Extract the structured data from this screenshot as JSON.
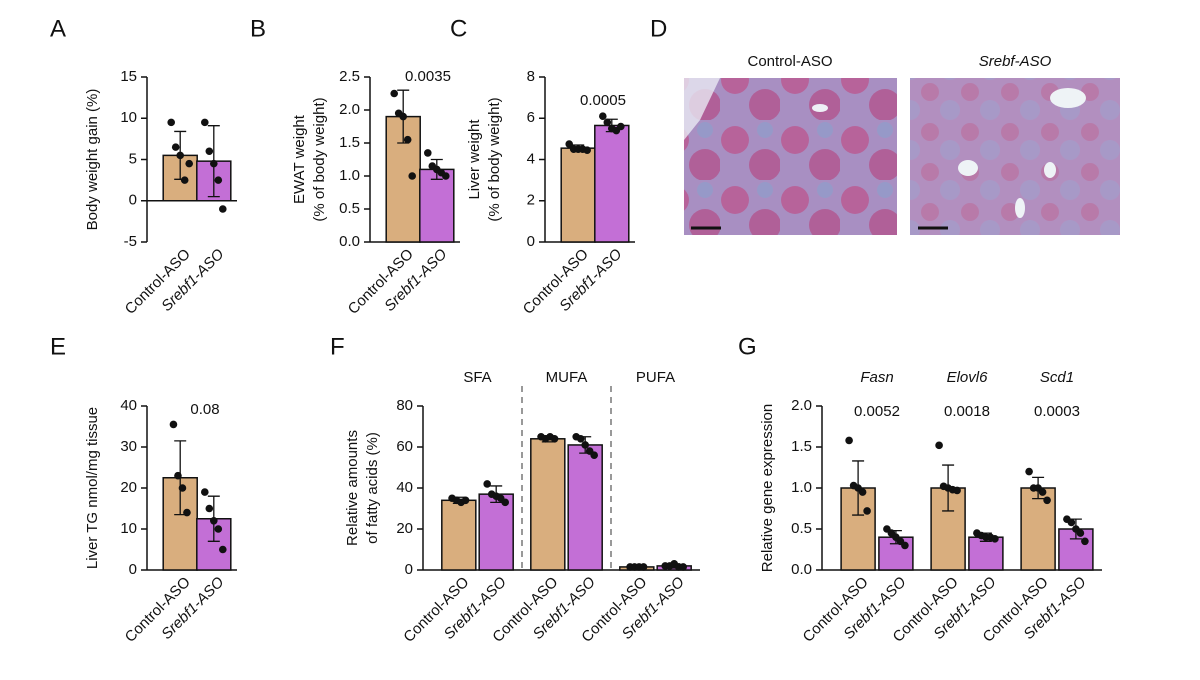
{
  "chart_data": [
    {
      "type": "bar",
      "label": "A",
      "ylabel": [
        "Body weight gain (%)"
      ],
      "categories": [
        "Control-ASO",
        "Srebf1-ASO"
      ],
      "colors": [
        "#d9ae7e",
        "#c36fd6"
      ],
      "ylim": [
        -5,
        15
      ],
      "yticks": [
        -5,
        0,
        5,
        10,
        15
      ],
      "groups": [
        {
          "values": [
            5.5,
            4.8
          ],
          "errors": [
            2.9,
            4.3
          ],
          "points": [
            [
              9.5,
              6.5,
              5.5,
              2.5,
              4.5
            ],
            [
              9.5,
              6,
              4.5,
              2.5,
              -1
            ]
          ]
        }
      ]
    },
    {
      "type": "bar",
      "label": "B",
      "ylabel": [
        "EWAT weight",
        "(% of body weight)"
      ],
      "categories": [
        "Control-ASO",
        "Srebf1-ASO"
      ],
      "colors": [
        "#d9ae7e",
        "#c36fd6"
      ],
      "ylim": [
        0,
        2.5
      ],
      "yticks": [
        {
          "value": 0,
          "label": "0.0"
        },
        0.5,
        {
          "value": 1,
          "label": "1.0"
        },
        1.5,
        {
          "value": 2,
          "label": "2.0"
        },
        2.5
      ],
      "groups": [
        {
          "annotation": "0.0035",
          "values": [
            1.9,
            1.1
          ],
          "errors": [
            0.4,
            0.15
          ],
          "points": [
            [
              2.25,
              1.95,
              1.9,
              1.55,
              1.0
            ],
            [
              1.35,
              1.15,
              1.1,
              1.05,
              1.0
            ]
          ]
        }
      ]
    },
    {
      "type": "bar",
      "label": "C",
      "ylabel": [
        "Liver weight",
        "(% of body weight)"
      ],
      "categories": [
        "Control-ASO",
        "Srebf1-ASO"
      ],
      "colors": [
        "#d9ae7e",
        "#c36fd6"
      ],
      "ylim": [
        0,
        8
      ],
      "yticks": [
        0,
        2,
        4,
        6,
        8
      ],
      "groups": [
        {
          "annotation": "0.0005",
          "values": [
            4.55,
            5.65
          ],
          "errors": [
            0.15,
            0.3
          ],
          "points": [
            [
              4.75,
              4.5,
              4.5,
              4.5,
              4.45
            ],
            [
              6.1,
              5.8,
              5.5,
              5.4,
              5.6
            ]
          ]
        }
      ]
    },
    {
      "type": "bar",
      "label": "E",
      "ylabel": [
        "Liver TG nmol/mg tissue"
      ],
      "categories": [
        "Control-ASO",
        "Srebf1-ASO"
      ],
      "colors": [
        "#d9ae7e",
        "#c36fd6"
      ],
      "ylim": [
        0,
        40
      ],
      "yticks": [
        0,
        10,
        20,
        30,
        40
      ],
      "groups": [
        {
          "annotation": "0.08",
          "values": [
            22.5,
            12.5
          ],
          "errors": [
            9,
            5.5
          ],
          "points": [
            [
              35.5,
              23,
              20,
              14
            ],
            [
              19,
              15,
              12,
              10,
              5
            ]
          ]
        }
      ]
    },
    {
      "type": "bar",
      "label": "F",
      "ylabel": [
        "Relative amounts",
        "of fatty acids (%)"
      ],
      "categories": [
        "Control-ASO",
        "Srebf1-ASO"
      ],
      "colors": [
        "#d9ae7e",
        "#c36fd6"
      ],
      "ylim": [
        0,
        80
      ],
      "yticks": [
        0,
        20,
        40,
        60,
        80
      ],
      "separators": true,
      "groups": [
        {
          "name": "SFA",
          "values": [
            34,
            37
          ],
          "errors": [
            1.5,
            4
          ],
          "points": [
            [
              35,
              34,
              33,
              34
            ],
            [
              42,
              37,
              36,
              35,
              33
            ]
          ]
        },
        {
          "name": "MUFA",
          "values": [
            64,
            61
          ],
          "errors": [
            1.5,
            4
          ],
          "points": [
            [
              65,
              64,
              65,
              64
            ],
            [
              65,
              64,
              61,
              58,
              56
            ]
          ]
        },
        {
          "name": "PUFA",
          "values": [
            1.5,
            2
          ],
          "errors": [
            0.5,
            1
          ],
          "points": [
            [
              1.5,
              1.5,
              1.5,
              1.5
            ],
            [
              2,
              2,
              3,
              1.5,
              1.5
            ]
          ]
        }
      ]
    },
    {
      "type": "bar",
      "label": "G",
      "ylabel": [
        "Relative gene expression"
      ],
      "categories": [
        "Control-ASO",
        "Srebf1-ASO"
      ],
      "colors": [
        "#d9ae7e",
        "#c36fd6"
      ],
      "ylim": [
        0,
        2
      ],
      "yticks": [
        {
          "value": 0,
          "label": "0.0"
        },
        0.5,
        {
          "value": 1,
          "label": "1.0"
        },
        1.5,
        {
          "value": 2,
          "label": "2.0"
        }
      ],
      "groups": [
        {
          "name": "Fasn",
          "annotation": "0.0052",
          "values": [
            1.0,
            0.4
          ],
          "errors": [
            0.33,
            0.08
          ],
          "points": [
            [
              1.58,
              1.03,
              1.0,
              0.95,
              0.72
            ],
            [
              0.5,
              0.45,
              0.4,
              0.35,
              0.3
            ]
          ]
        },
        {
          "name": "Elovl6",
          "annotation": "0.0018",
          "values": [
            1.0,
            0.4
          ],
          "errors": [
            0.28,
            0.05
          ],
          "points": [
            [
              1.52,
              1.02,
              1.0,
              0.98,
              0.97
            ],
            [
              0.45,
              0.42,
              0.4,
              0.4,
              0.38
            ]
          ]
        },
        {
          "name": "Scd1",
          "annotation": "0.0003",
          "values": [
            1.0,
            0.5
          ],
          "errors": [
            0.13,
            0.12
          ],
          "points": [
            [
              1.2,
              1.0,
              1.0,
              0.95,
              0.85
            ],
            [
              0.62,
              0.58,
              0.5,
              0.45,
              0.35
            ]
          ]
        }
      ]
    }
  ],
  "micrographs": {
    "label": "D",
    "titles": [
      "Control-ASO",
      "Srebf-ASO"
    ]
  }
}
